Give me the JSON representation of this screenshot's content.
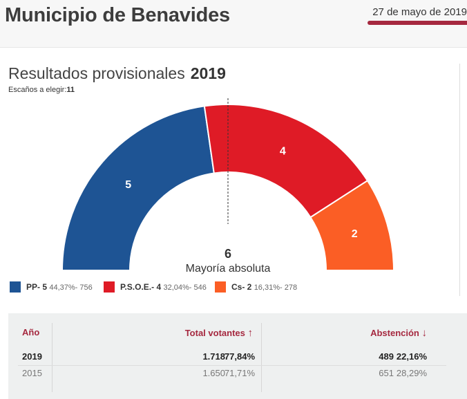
{
  "header": {
    "municipality": "Municipio de Benavides",
    "date": "27 de mayo de 2019"
  },
  "results": {
    "title": "Resultados provisionales",
    "year": "2019",
    "seats_label": "Escaños a elegir:",
    "seats_value": "11",
    "majority_number": "6",
    "majority_label": "Mayoría absoluta"
  },
  "chart_data": {
    "type": "pie",
    "subtype": "parliament-hemicycle",
    "total_seats": 11,
    "majority": 6,
    "series": [
      {
        "name": "PP",
        "seats": 5,
        "percent": "44,37%",
        "votes": "756",
        "color": "#1e5494"
      },
      {
        "name": "P.S.O.E.",
        "seats": 4,
        "percent": "32,04%",
        "votes": "546",
        "color": "#df1b26"
      },
      {
        "name": "Cs",
        "seats": 2,
        "percent": "16,31%",
        "votes": "278",
        "color": "#fb5e25"
      }
    ]
  },
  "legend": [
    {
      "label": "PP- 5",
      "detail": "44,37%- 756",
      "color": "#1e5494"
    },
    {
      "label": "P.S.O.E.- 4",
      "detail": "32,04%- 546",
      "color": "#df1b26"
    },
    {
      "label": "Cs- 2",
      "detail": "16,31%- 278",
      "color": "#fb5e25"
    }
  ],
  "table": {
    "headers": {
      "year": "Año",
      "voters": "Total votantes",
      "abstention": "Abstención"
    },
    "voters_arrow": "↑",
    "abstention_arrow": "↓",
    "rows": [
      {
        "year": "2019",
        "voters": "1.718",
        "voters_pct": "77,84%",
        "abst": "489",
        "abst_pct": "22,16%"
      },
      {
        "year": "2015",
        "voters": "1.650",
        "voters_pct": "71,71%",
        "abst": "651",
        "abst_pct": "28,29%"
      }
    ]
  }
}
